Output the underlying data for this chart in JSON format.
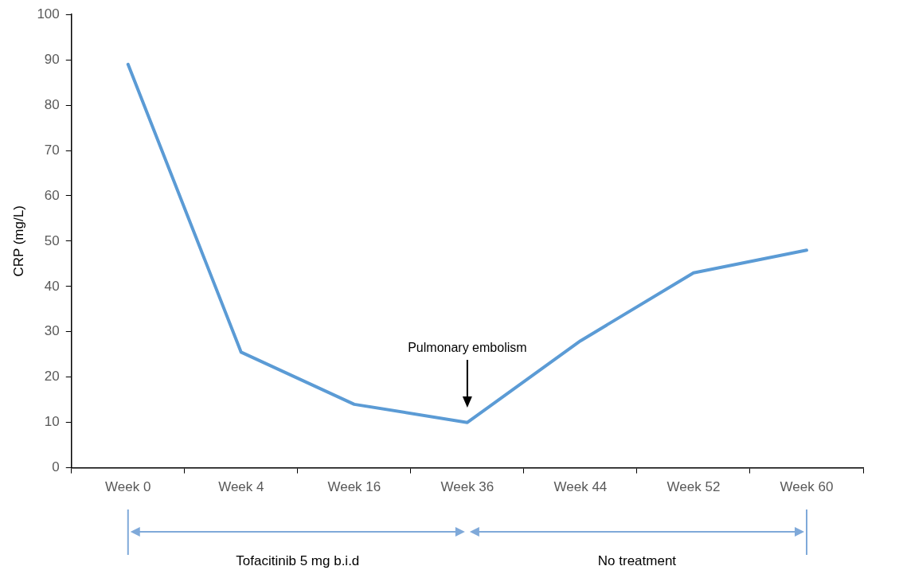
{
  "chart_data": {
    "type": "line",
    "ylabel": "CRP (mg/L)",
    "categories": [
      "Week 0",
      "Week 4",
      "Week 16",
      "Week 36",
      "Week 44",
      "Week 52",
      "Week 60"
    ],
    "series": [
      {
        "color": "#5b9bd5",
        "values": [
          89,
          25.5,
          14,
          10,
          28,
          43,
          48
        ]
      }
    ],
    "ylim": [
      0,
      100
    ],
    "yticks": [
      0,
      10,
      20,
      30,
      40,
      50,
      60,
      70,
      80,
      90,
      100
    ],
    "grid": false,
    "legend": false,
    "marker": "none",
    "line_style": "solid",
    "annotations": [
      "Pulmonary embolism",
      "Tofacitinib 5 mg b.i.d",
      "No treatment"
    ]
  }
}
